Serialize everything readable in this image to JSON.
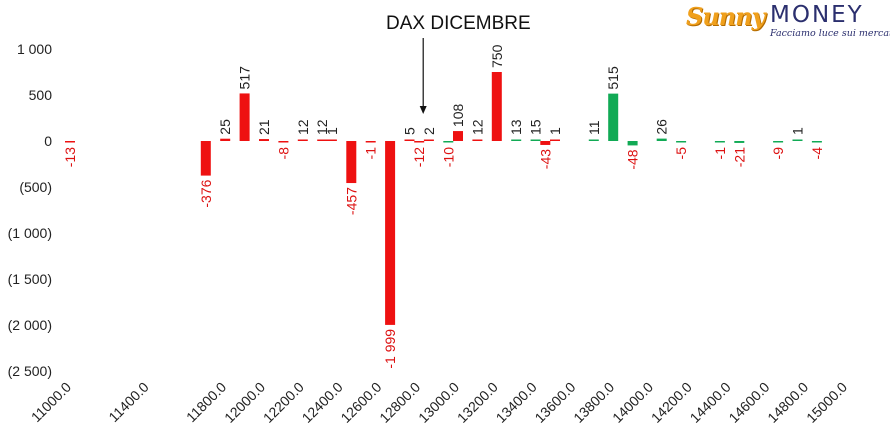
{
  "logo": {
    "brand_part1": "Sunny",
    "brand_part2": "MONEY",
    "tagline": "Facciamo luce sui mercati"
  },
  "chart_data": {
    "type": "bar",
    "title": "DAX DICEMBRE",
    "xlabel": "",
    "ylabel": "",
    "ylim": [
      -2500,
      1000
    ],
    "y_ticks": [
      1000,
      500,
      0,
      -500,
      -1000,
      -1500,
      -2000,
      -2500
    ],
    "y_tick_labels": [
      "1 000",
      "500",
      "0",
      "(500)",
      "(1 000)",
      "(1 500)",
      "(2 000)",
      "(2 500)"
    ],
    "x_range": [
      11000,
      15000
    ],
    "x_tick_labels": [
      "11000.0",
      "11400.0",
      "11800.0",
      "12000.0",
      "12200.0",
      "12400.0",
      "12600.0",
      "12800.0",
      "13000.0",
      "13200.0",
      "13400.0",
      "13600.0",
      "13800.0",
      "14000.0",
      "14200.0",
      "14400.0",
      "14600.0",
      "14800.0",
      "15000.0"
    ],
    "x_tick_positions": [
      11000,
      11400,
      11800,
      12000,
      12200,
      12400,
      12600,
      12800,
      13000,
      13200,
      13400,
      13600,
      13800,
      14000,
      14200,
      14400,
      14600,
      14800,
      15000
    ],
    "annotation_arrow_x": 12800,
    "colors": {
      "red": "#ee1111",
      "green": "#11aa55",
      "positive_label": "#222222",
      "negative_label": "#dd1111"
    },
    "points": [
      {
        "x": 11000,
        "value": -13,
        "label": "-13",
        "color": "red"
      },
      {
        "x": 11700,
        "value": -376,
        "label": "-376",
        "color": "red"
      },
      {
        "x": 11800,
        "value": 25,
        "label": "25",
        "color": "red"
      },
      {
        "x": 11900,
        "value": 517,
        "label": "517",
        "color": "red"
      },
      {
        "x": 12000,
        "value": 21,
        "label": "21",
        "color": "red"
      },
      {
        "x": 12100,
        "value": -8,
        "label": "-8",
        "color": "red"
      },
      {
        "x": 12200,
        "value": 12,
        "label": "12",
        "color": "red"
      },
      {
        "x": 12300,
        "value": 12,
        "label": "12",
        "color": "red"
      },
      {
        "x": 12350,
        "value": 1,
        "label": "1",
        "color": "red"
      },
      {
        "x": 12450,
        "value": -457,
        "label": "-457",
        "color": "red"
      },
      {
        "x": 12550,
        "value": -1,
        "label": "-1",
        "color": "red"
      },
      {
        "x": 12650,
        "value": -1999,
        "label": "-1 999",
        "color": "red"
      },
      {
        "x": 12750,
        "value": 5,
        "label": "5",
        "color": "red"
      },
      {
        "x": 12800,
        "value": -12,
        "label": "-12",
        "color": "red"
      },
      {
        "x": 12850,
        "value": 2,
        "label": "2",
        "color": "red"
      },
      {
        "x": 12950,
        "value": -10,
        "label": "-10",
        "color": "green"
      },
      {
        "x": 13000,
        "value": 108,
        "label": "108",
        "color": "red"
      },
      {
        "x": 13100,
        "value": 12,
        "label": "12",
        "color": "red"
      },
      {
        "x": 13200,
        "value": 750,
        "label": "750",
        "color": "red"
      },
      {
        "x": 13300,
        "value": 13,
        "label": "13",
        "color": "green"
      },
      {
        "x": 13400,
        "value": 15,
        "label": "15",
        "color": "green"
      },
      {
        "x": 13450,
        "value": -43,
        "label": "-43",
        "color": "red"
      },
      {
        "x": 13500,
        "value": 1,
        "label": "1",
        "color": "red"
      },
      {
        "x": 13700,
        "value": 11,
        "label": "11",
        "color": "green"
      },
      {
        "x": 13800,
        "value": 515,
        "label": "515",
        "color": "green"
      },
      {
        "x": 13900,
        "value": -48,
        "label": "-48",
        "color": "green"
      },
      {
        "x": 14050,
        "value": 26,
        "label": "26",
        "color": "green"
      },
      {
        "x": 14150,
        "value": -5,
        "label": "-5",
        "color": "green"
      },
      {
        "x": 14350,
        "value": -1,
        "label": "-1",
        "color": "green"
      },
      {
        "x": 14450,
        "value": -21,
        "label": "-21",
        "color": "green"
      },
      {
        "x": 14650,
        "value": -9,
        "label": "-9",
        "color": "green"
      },
      {
        "x": 14750,
        "value": 1,
        "label": "1",
        "color": "green"
      },
      {
        "x": 14850,
        "value": -4,
        "label": "-4",
        "color": "green"
      }
    ]
  }
}
